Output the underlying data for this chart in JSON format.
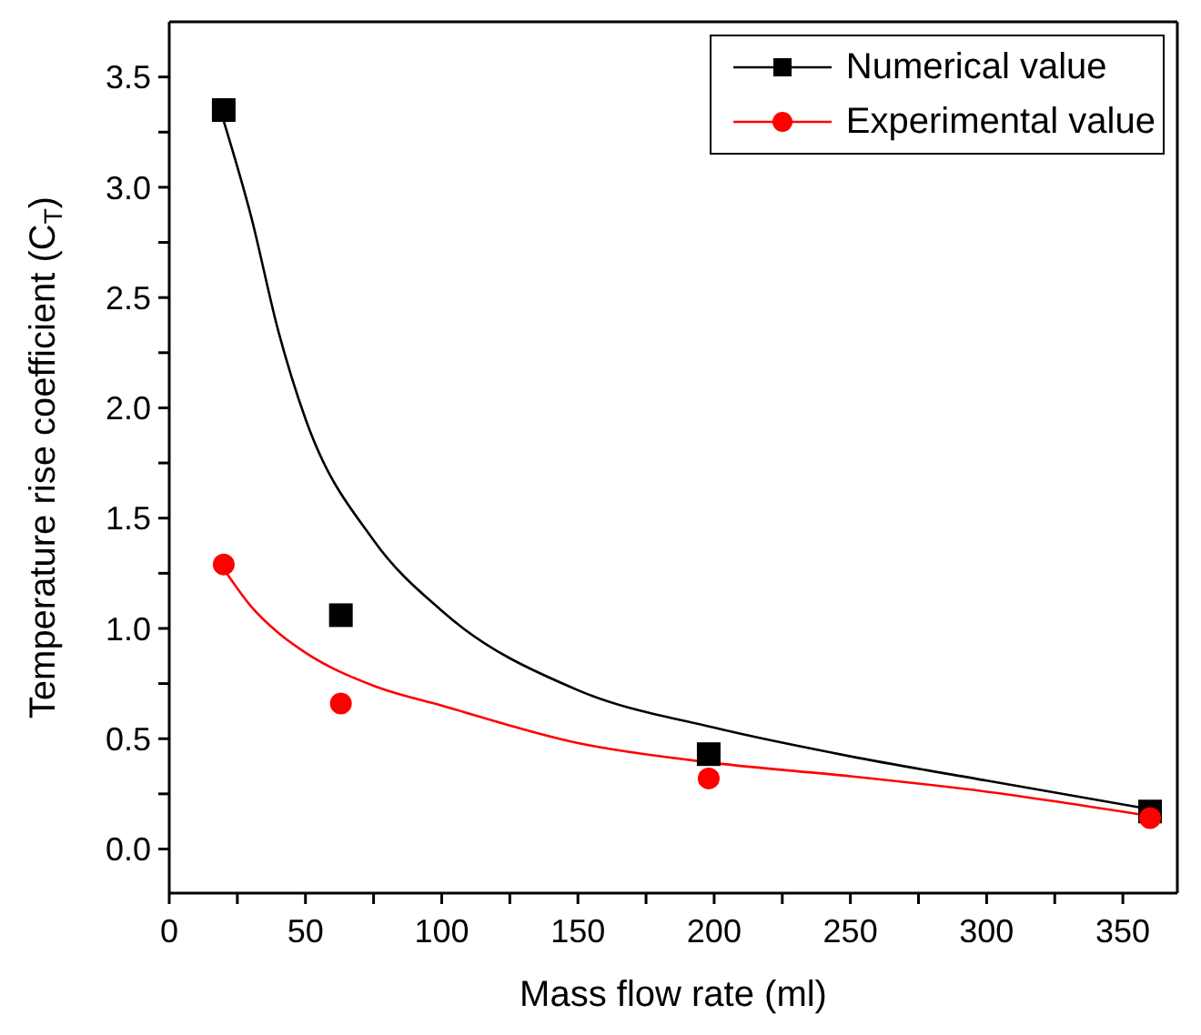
{
  "chart_data": {
    "type": "scatter",
    "xlabel": "Mass flow rate (ml)",
    "ylabel": "Temperature rise coefficient (C$_{T}$)",
    "xlim": [
      0,
      370
    ],
    "xticks": [
      0,
      {
        "value": 25,
        "label": null
      },
      50,
      {
        "value": 75,
        "label": null
      },
      100,
      {
        "value": 125,
        "label": null
      },
      150,
      {
        "value": 175,
        "label": null
      },
      200,
      {
        "value": 225,
        "label": null
      },
      250,
      {
        "value": 275,
        "label": null
      },
      300,
      {
        "value": 325,
        "label": null
      },
      350
    ],
    "ylim": [
      -0.2,
      3.75
    ],
    "yticks": [
      {
        "value": 0,
        "label": "0.0"
      },
      {
        "value": 0.25,
        "label": null
      },
      0.5,
      {
        "value": 0.75,
        "label": null
      },
      {
        "value": 1,
        "label": "1.0"
      },
      {
        "value": 1.25,
        "label": null
      },
      1.5,
      {
        "value": 1.75,
        "label": null
      },
      {
        "value": 2,
        "label": "2.0"
      },
      {
        "value": 2.25,
        "label": null
      },
      2.5,
      {
        "value": 2.75,
        "label": null
      },
      {
        "value": 3,
        "label": "3.0"
      },
      {
        "value": 3.25,
        "label": null
      },
      3.5
    ],
    "legend": "top right",
    "grid": false,
    "series": [
      {
        "name": "Numerical value",
        "marker": "square",
        "color": "#000000",
        "x": [
          20,
          63,
          198,
          360
        ],
        "values": [
          3.35,
          1.06,
          0.43,
          0.17
        ]
      },
      {
        "name": "Experimental value",
        "marker": "circle",
        "color": "#ff0000",
        "x": [
          20,
          63,
          198,
          360
        ],
        "values": [
          1.29,
          0.66,
          0.32,
          0.14
        ]
      },
      {
        "type": "line",
        "color": "#000000",
        "x": [
          20,
          30,
          40,
          50,
          75,
          100,
          150,
          200,
          250,
          300,
          360
        ],
        "values": [
          3.3,
          2.87,
          2.35,
          1.95,
          1.4,
          1.08,
          0.72,
          0.55,
          0.42,
          0.31,
          0.18
        ]
      },
      {
        "type": "line",
        "color": "#ff0000",
        "x": [
          20,
          30,
          40,
          50,
          75,
          100,
          150,
          200,
          250,
          300,
          360
        ],
        "values": [
          1.27,
          1.1,
          0.98,
          0.89,
          0.74,
          0.65,
          0.48,
          0.39,
          0.33,
          0.26,
          0.15
        ]
      }
    ]
  }
}
